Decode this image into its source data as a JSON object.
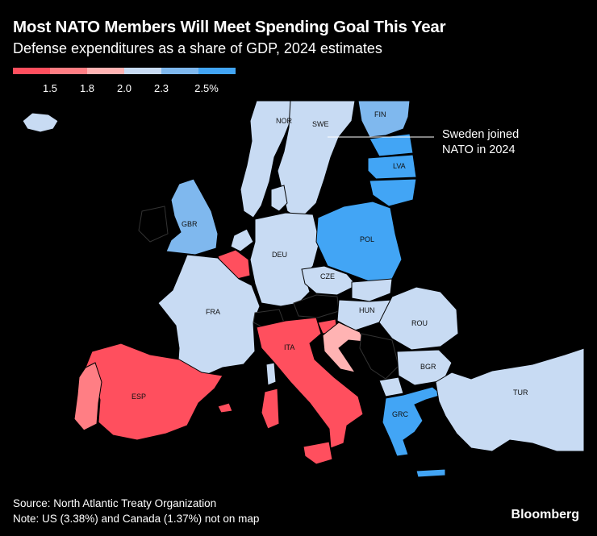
{
  "title": "Most NATO Members Will Meet Spending Goal This Year",
  "subtitle": "Defense expenditures as a share of GDP, 2024 estimates",
  "legend": {
    "colors": [
      "#ff4f5e",
      "#ff7e84",
      "#ffb3b3",
      "#c8dbf3",
      "#7fb8ee",
      "#42a5f5"
    ],
    "ticks": [
      "1.5",
      "1.8",
      "2.0",
      "2.3",
      "2.5%"
    ]
  },
  "countries": {
    "NOR": "NOR",
    "SWE": "SWE",
    "FIN": "FIN",
    "LVA": "LVA",
    "GBR": "GBR",
    "DEU": "DEU",
    "POL": "POL",
    "CZE": "CZE",
    "FRA": "FRA",
    "HUN": "HUN",
    "ROU": "ROU",
    "ITA": "ITA",
    "BGR": "BGR",
    "ESP": "ESP",
    "TUR": "TUR",
    "GRC": "GRC"
  },
  "annotation": {
    "line1": "Sweden joined",
    "line2": "NATO in 2024"
  },
  "footer": {
    "source": "Source: North Atlantic Treaty Organization",
    "note": "Note: US (3.38%) and Canada (1.37%) not on map",
    "brand": "Bloomberg"
  }
}
